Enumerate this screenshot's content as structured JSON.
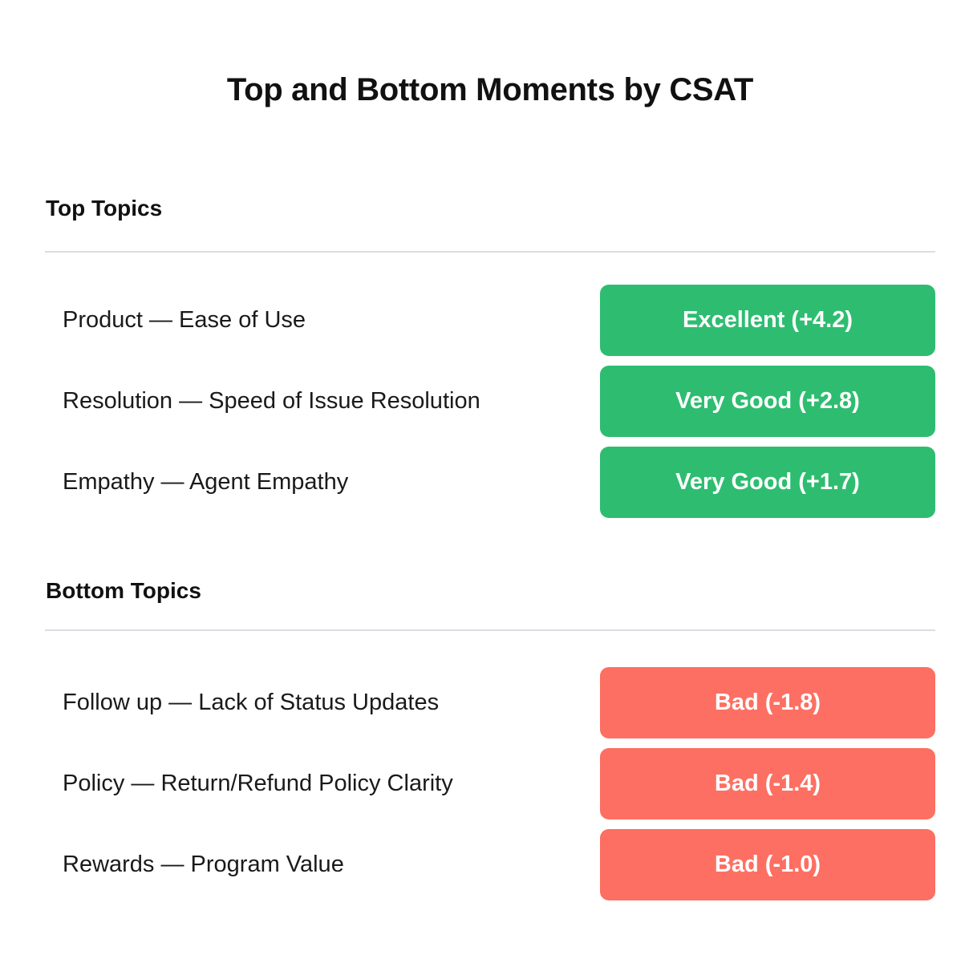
{
  "title": "Top and Bottom Moments by CSAT",
  "colors": {
    "positive": "#2ebd70",
    "negative": "#fd6f62",
    "divider": "#dcdde3"
  },
  "top_section": {
    "heading": "Top Topics",
    "rows": [
      {
        "label": "Product — Ease of Use",
        "rating": "Excellent (+4.2)",
        "score": 4.2
      },
      {
        "label": "Resolution — Speed of Issue Resolution",
        "rating": "Very Good (+2.8)",
        "score": 2.8
      },
      {
        "label": "Empathy — Agent Empathy",
        "rating": "Very Good (+1.7)",
        "score": 1.7
      }
    ]
  },
  "bottom_section": {
    "heading": "Bottom Topics",
    "rows": [
      {
        "label": "Follow up — Lack of Status Updates",
        "rating": "Bad (-1.8)",
        "score": -1.8
      },
      {
        "label": "Policy — Return/Refund Policy Clarity",
        "rating": "Bad (-1.4)",
        "score": -1.4
      },
      {
        "label": "Rewards — Program Value",
        "rating": "Bad (-1.0)",
        "score": -1.0
      }
    ]
  }
}
